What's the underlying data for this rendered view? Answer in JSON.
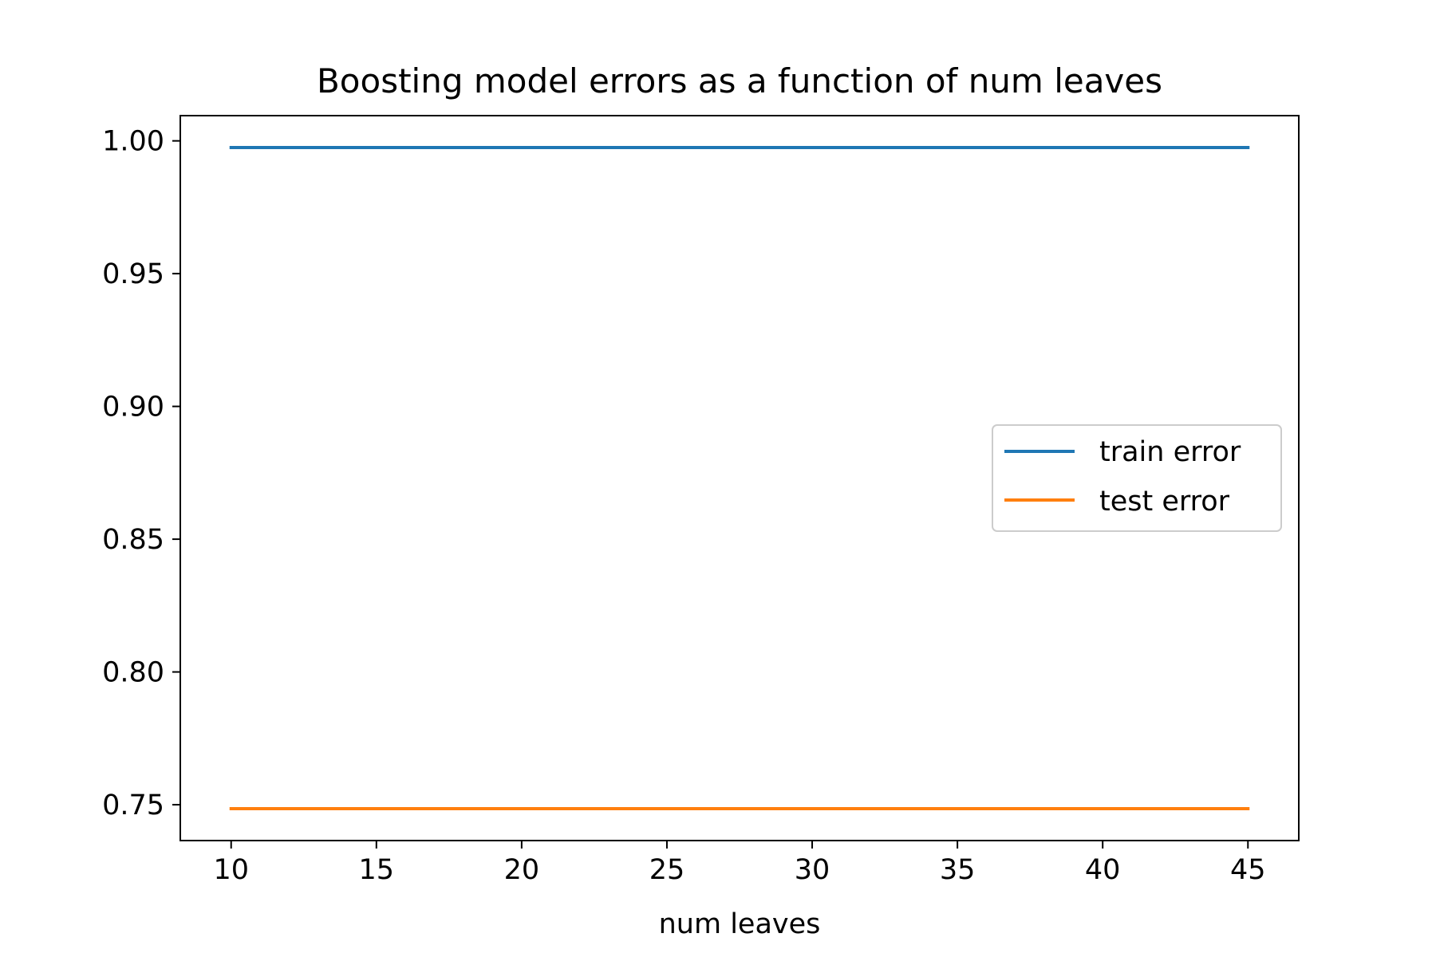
{
  "chart_data": {
    "type": "line",
    "title": "Boosting model errors as a function of num leaves",
    "xlabel": "num leaves",
    "ylabel": "",
    "x": [
      10,
      15,
      20,
      25,
      30,
      35,
      40,
      45
    ],
    "xlim": [
      8.25,
      46.75
    ],
    "ylim": [
      0.7365,
      1.0095
    ],
    "xticks": [
      10,
      15,
      20,
      25,
      30,
      35,
      40,
      45
    ],
    "xtick_labels": [
      "10",
      "15",
      "20",
      "25",
      "30",
      "35",
      "40",
      "45"
    ],
    "yticks": [
      0.75,
      0.8,
      0.85,
      0.9,
      0.95,
      1.0
    ],
    "ytick_labels": [
      "0.75",
      "0.80",
      "0.85",
      "0.90",
      "0.95",
      "1.00"
    ],
    "grid": false,
    "legend_position": "center-right",
    "series": [
      {
        "name": "train error",
        "color": "#1f77b4",
        "values": [
          0.9975,
          0.9975,
          0.9975,
          0.9975,
          0.9975,
          0.9975,
          0.9975,
          0.9975
        ]
      },
      {
        "name": "test error",
        "color": "#ff7f0e",
        "values": [
          0.7485,
          0.7485,
          0.7485,
          0.7485,
          0.7485,
          0.7485,
          0.7485,
          0.7485
        ]
      }
    ]
  }
}
